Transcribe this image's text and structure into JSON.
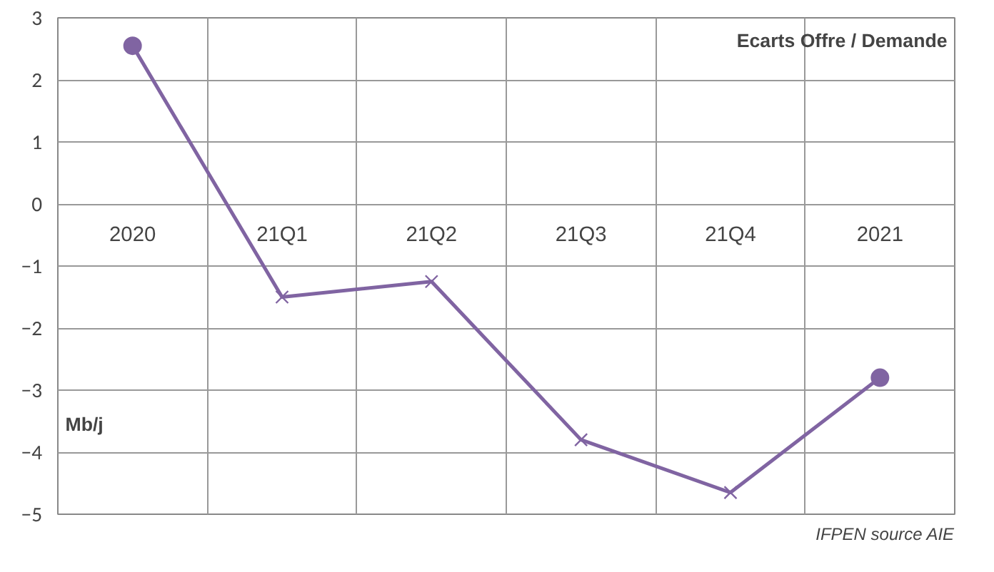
{
  "chart_data": {
    "type": "line",
    "title": "Ecarts Offre / Demande",
    "ylabel": "Mb/j",
    "categories": [
      "2020",
      "21Q1",
      "21Q2",
      "21Q3",
      "21Q4",
      "2021"
    ],
    "series": [
      {
        "color": "#8064a2",
        "marker": "none",
        "values": [
          2.55,
          -1.5,
          -1.25,
          -3.8,
          -4.65,
          -2.8
        ]
      },
      {
        "type": "scatter",
        "color": "#8064a2",
        "marker": "cross",
        "values": [
          null,
          -1.5,
          -1.25,
          -3.8,
          -4.65,
          null
        ]
      },
      {
        "type": "scatter",
        "color": "#8064a2",
        "marker": "circle",
        "values": [
          2.55,
          null,
          null,
          null,
          null,
          -2.8
        ]
      }
    ],
    "ylim": [
      -5,
      3
    ],
    "yticks": [
      -5,
      -4,
      -3,
      -2,
      -1,
      0,
      1,
      2,
      3
    ],
    "grid": true,
    "annotations": [
      "IFPEN source AIE"
    ]
  }
}
